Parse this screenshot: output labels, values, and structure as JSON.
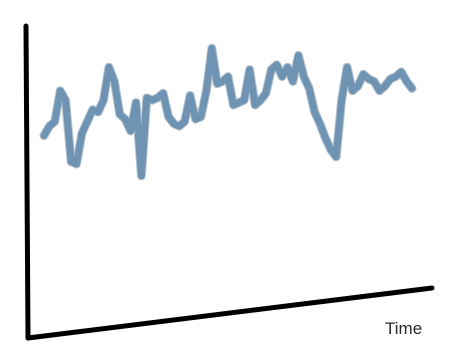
{
  "colors": {
    "series": "#6f93b3",
    "axis": "#000000"
  },
  "chart_data": {
    "type": "line",
    "title": "",
    "xlabel": "Time",
    "ylabel": "",
    "grid": false,
    "legend": "none",
    "xlim": [
      0,
      68
    ],
    "ylim": [
      0,
      100
    ],
    "series": [
      {
        "x": [
          0,
          1,
          2,
          3,
          4,
          5,
          6,
          7,
          8,
          9,
          10,
          11,
          12,
          13,
          14,
          15,
          16,
          17,
          18,
          19,
          20,
          21,
          22,
          23,
          24,
          25,
          26,
          27,
          28,
          29,
          30,
          31,
          32,
          33,
          34,
          35,
          36,
          37,
          38,
          39,
          40,
          41,
          42,
          43,
          44,
          45,
          46,
          47,
          48,
          49,
          50,
          51,
          52,
          53,
          54,
          55,
          56,
          57,
          58,
          59,
          60,
          61,
          62,
          63,
          64,
          65,
          66,
          67,
          68
        ],
        "values": [
          51,
          55,
          57,
          70,
          66,
          40,
          39,
          52,
          57,
          62,
          61,
          66,
          80,
          74,
          60,
          58,
          53,
          65,
          34,
          67,
          66,
          67,
          69,
          59,
          56,
          55,
          57,
          68,
          58,
          59,
          70,
          88,
          73,
          74,
          76,
          64,
          65,
          66,
          79,
          64,
          66,
          69,
          79,
          81,
          76,
          80,
          74,
          85,
          76,
          71,
          61,
          56,
          50,
          45,
          42,
          66,
          80,
          70,
          72,
          77,
          75,
          74,
          70,
          72,
          75,
          76,
          78,
          74,
          71
        ]
      }
    ]
  }
}
